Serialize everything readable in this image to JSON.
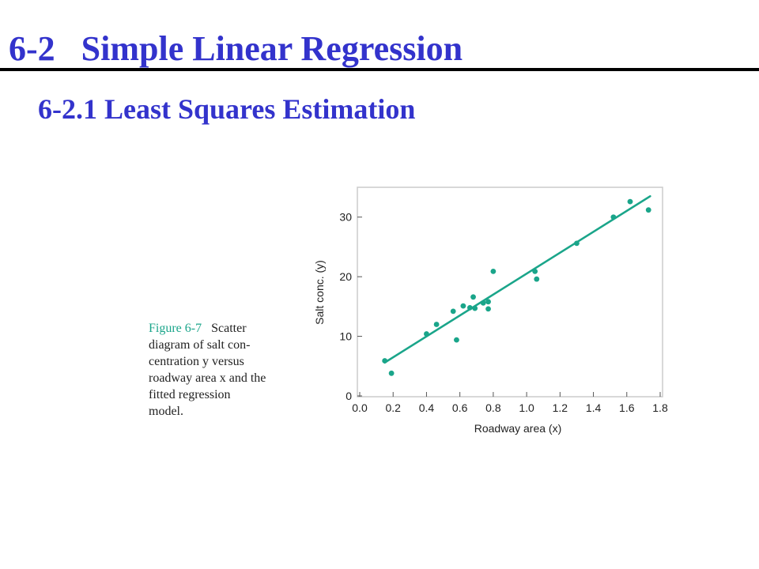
{
  "slide": {
    "title": "6-2   Simple Linear Regression",
    "subtitle": "6-2.1 Least Squares Estimation"
  },
  "caption": {
    "label": "Figure 6-7",
    "lines": [
      "Scatter",
      "diagram of salt con-",
      "centration y versus",
      "roadway area x and the",
      "fitted regression",
      "model."
    ]
  },
  "colors": {
    "title": "#3333cc",
    "accent": "#1aa58a",
    "rule": "#000000"
  },
  "chart_data": {
    "type": "scatter",
    "xlabel": "Roadway area (x)",
    "ylabel": "Salt conc. (y)",
    "xlim": [
      0.0,
      1.8
    ],
    "ylim": [
      0,
      35
    ],
    "xticks": [
      0.0,
      0.2,
      0.4,
      0.6,
      0.8,
      1.0,
      1.2,
      1.4,
      1.6,
      1.8
    ],
    "xtick_labels": [
      "0.0",
      "0.2",
      "0.4",
      "0.6",
      "0.8",
      "1.0",
      "1.2",
      "1.4",
      "1.6",
      "1.8"
    ],
    "yticks": [
      0,
      10,
      20,
      30
    ],
    "ytick_labels": [
      "0",
      "10",
      "20",
      "30"
    ],
    "grid": false,
    "points": [
      {
        "x": 0.15,
        "y": 5.9
      },
      {
        "x": 0.19,
        "y": 3.8
      },
      {
        "x": 0.4,
        "y": 10.4
      },
      {
        "x": 0.46,
        "y": 12.0
      },
      {
        "x": 0.56,
        "y": 14.2
      },
      {
        "x": 0.58,
        "y": 9.4
      },
      {
        "x": 0.62,
        "y": 15.1
      },
      {
        "x": 0.66,
        "y": 14.8
      },
      {
        "x": 0.68,
        "y": 16.6
      },
      {
        "x": 0.69,
        "y": 14.7
      },
      {
        "x": 0.74,
        "y": 15.6
      },
      {
        "x": 0.77,
        "y": 14.6
      },
      {
        "x": 0.77,
        "y": 15.8
      },
      {
        "x": 0.8,
        "y": 20.9
      },
      {
        "x": 1.05,
        "y": 20.9
      },
      {
        "x": 1.06,
        "y": 19.6
      },
      {
        "x": 1.3,
        "y": 25.6
      },
      {
        "x": 1.52,
        "y": 30.0
      },
      {
        "x": 1.62,
        "y": 32.6
      },
      {
        "x": 1.73,
        "y": 31.2
      }
    ],
    "fit_line": {
      "x": [
        0.15,
        1.74
      ],
      "y": [
        5.6,
        33.5
      ]
    }
  }
}
